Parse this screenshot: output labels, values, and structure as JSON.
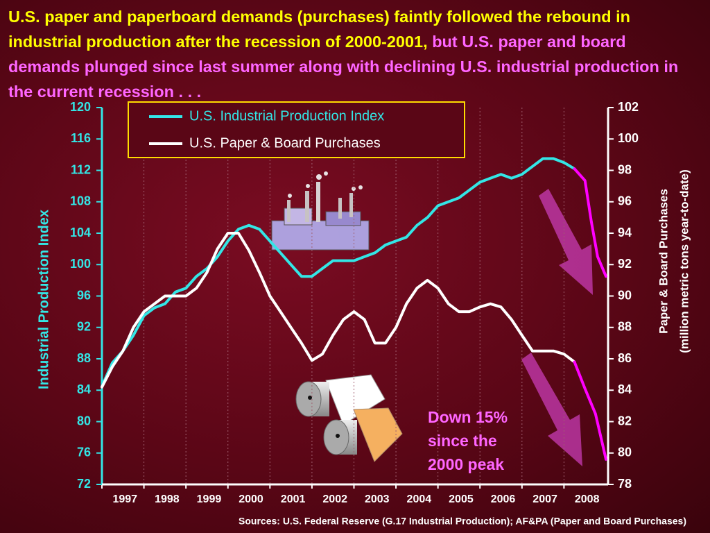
{
  "chart_data": {
    "type": "line",
    "title": [
      "U.S. paper and paperboard demands (purchases) faintly followed the rebound in industrial production after the recession of 2000-2001, ",
      "but U.S. paper and board demands plunged since last summer along with declining U.S. industrial production in the current recession . . ."
    ],
    "title_colors": [
      "#ffff00",
      "#ff66ff"
    ],
    "ylabel": "Industrial Production Index",
    "y2label": [
      "Paper & Board Purchases",
      "(million metric tons year-to-date)"
    ],
    "categories": [
      "1997",
      "1998",
      "1999",
      "2000",
      "2001",
      "2002",
      "2003",
      "2004",
      "2005",
      "2006",
      "2007",
      "2008"
    ],
    "xlim": [
      1997,
      2009.05
    ],
    "ylim": [
      72,
      120
    ],
    "yticks": [
      72,
      76,
      80,
      84,
      88,
      92,
      96,
      100,
      104,
      108,
      112,
      116,
      120
    ],
    "y2lim": [
      78,
      102
    ],
    "y2ticks": [
      78,
      80,
      82,
      84,
      86,
      88,
      90,
      92,
      94,
      96,
      98,
      100,
      102
    ],
    "legend": "upper left",
    "highlight_from": 2008.25,
    "highlight_color": "#ff00ff",
    "series": [
      {
        "name": "U.S. Industrial Production Index",
        "color": "#33e6e6",
        "x": [
          1997.0,
          1997.25,
          1997.5,
          1997.75,
          1998.0,
          1998.25,
          1998.5,
          1998.75,
          1999.0,
          1999.25,
          1999.5,
          1999.75,
          2000.0,
          2000.25,
          2000.5,
          2000.75,
          2001.0,
          2001.25,
          2001.5,
          2001.75,
          2002.0,
          2002.25,
          2002.5,
          2002.75,
          2003.0,
          2003.25,
          2003.5,
          2003.75,
          2004.0,
          2004.25,
          2004.5,
          2004.75,
          2005.0,
          2005.25,
          2005.5,
          2005.75,
          2006.0,
          2006.25,
          2006.5,
          2006.75,
          2007.0,
          2007.25,
          2007.5,
          2007.75,
          2008.0,
          2008.25,
          2008.5,
          2008.65,
          2008.8,
          2009.0
        ],
        "values": [
          84.5,
          87.5,
          89,
          91,
          93.5,
          94.5,
          95,
          96.5,
          97,
          98.5,
          99.5,
          101,
          103,
          104.5,
          105,
          104.5,
          103,
          101.5,
          100,
          98.5,
          98.5,
          99.5,
          100.5,
          100.5,
          100.5,
          101,
          101.5,
          102.5,
          103,
          103.5,
          105,
          106,
          107.5,
          108,
          108.5,
          109.5,
          110.5,
          111,
          111.5,
          111,
          111.5,
          112.5,
          113.5,
          113.5,
          113,
          112.2,
          110.7,
          105.5,
          101,
          98.5
        ]
      },
      {
        "name": "U.S. Paper & Board Purchases",
        "color": "#ffffff",
        "axis": "y2",
        "x": [
          1997.0,
          1997.25,
          1997.5,
          1997.75,
          1998.0,
          1998.25,
          1998.5,
          1998.75,
          1999.0,
          1999.25,
          1999.5,
          1999.75,
          2000.0,
          2000.25,
          2000.5,
          2000.75,
          2001.0,
          2001.25,
          2001.5,
          2001.75,
          2002.0,
          2002.25,
          2002.5,
          2002.75,
          2003.0,
          2003.25,
          2003.5,
          2003.75,
          2004.0,
          2004.25,
          2004.5,
          2004.75,
          2005.0,
          2005.25,
          2005.5,
          2005.75,
          2006.0,
          2006.25,
          2006.5,
          2006.75,
          2007.0,
          2007.25,
          2007.5,
          2007.75,
          2008.0,
          2008.25,
          2008.5,
          2008.75,
          2009.0
        ],
        "values": [
          84.2,
          85.5,
          86.5,
          88,
          89,
          89.5,
          90,
          90,
          90,
          90.5,
          91.5,
          93,
          94,
          94,
          92.9,
          91.5,
          90,
          89,
          88,
          87,
          85.9,
          86.3,
          87.5,
          88.5,
          89,
          88.5,
          87,
          87,
          88,
          89.5,
          90.5,
          91,
          90.5,
          89.5,
          89,
          89,
          89.3,
          89.5,
          89.3,
          88.5,
          87.5,
          86.5,
          86.5,
          86.5,
          86.3,
          85.8,
          84.1,
          82.5,
          79.6
        ]
      }
    ],
    "annotation": [
      "Down 15%",
      "since the",
      "2000 peak"
    ],
    "source": "Sources:  U.S. Federal Reserve (G.17 Industrial Production); AF&PA (Paper and Board Purchases)"
  }
}
